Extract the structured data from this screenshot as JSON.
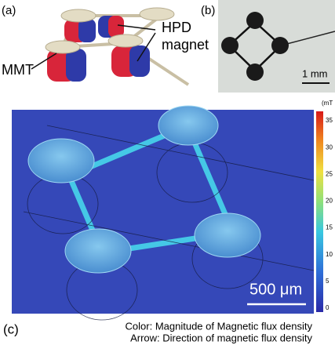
{
  "panel_a": {
    "label": "(a)",
    "hpd_label": [
      "HPD",
      "magnet"
    ],
    "mmt_label": "MMT"
  },
  "panel_b": {
    "label": "(b)",
    "scale_bar": "1 mm"
  },
  "panel_c": {
    "label": "(c)",
    "scale_bar": "500 μm",
    "colorbar": {
      "unit": "(mT",
      "ticks": [
        "35",
        "30",
        "25",
        "20",
        "15",
        "10",
        "5",
        "0"
      ]
    },
    "caption": [
      "Color: Magnitude of Magnetic flux density",
      "Arrow: Direction of magnetic flux density"
    ]
  }
}
